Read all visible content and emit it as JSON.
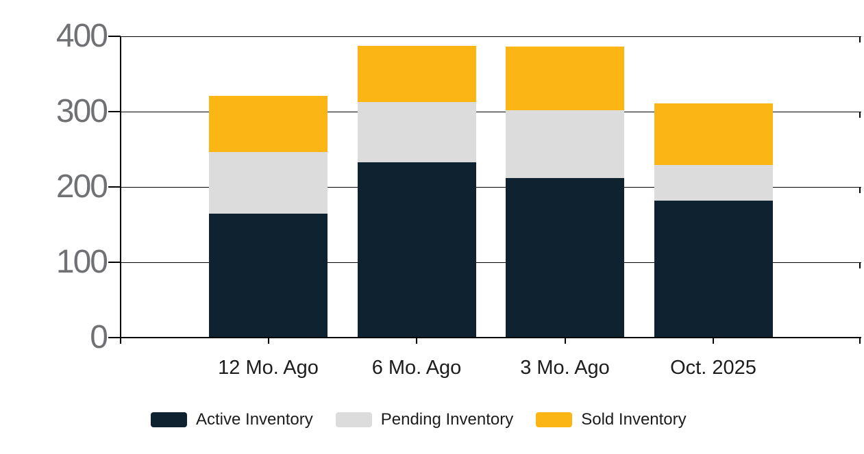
{
  "chart_data": {
    "type": "bar",
    "stacked": true,
    "title": "",
    "categories": [
      "12 Mo. Ago",
      "6 Mo. Ago",
      "3 Mo. Ago",
      "Oct. 2025"
    ],
    "series": [
      {
        "name": "Active Inventory",
        "color": "#0e222f",
        "values": [
          165,
          233,
          212,
          182
        ]
      },
      {
        "name": "Pending Inventory",
        "color": "#dcdcdc",
        "values": [
          81,
          80,
          90,
          47
        ]
      },
      {
        "name": "Sold Inventory",
        "color": "#fbb616",
        "values": [
          75,
          74,
          84,
          82
        ]
      }
    ],
    "stack_totals": [
      321,
      387,
      386,
      311
    ],
    "xlabel": "",
    "ylabel": "",
    "ylim": [
      0,
      400
    ],
    "yticks": [
      0,
      100,
      200,
      300,
      400
    ],
    "ytick_labels": [
      "0",
      "100",
      "200",
      "300",
      "400"
    ],
    "grid": true,
    "legend_position": "bottom-left",
    "colors": {
      "background": "#ffffff",
      "axis": "#000000",
      "ytick_label": "#707174",
      "category_label": "#1c1c1c"
    }
  }
}
